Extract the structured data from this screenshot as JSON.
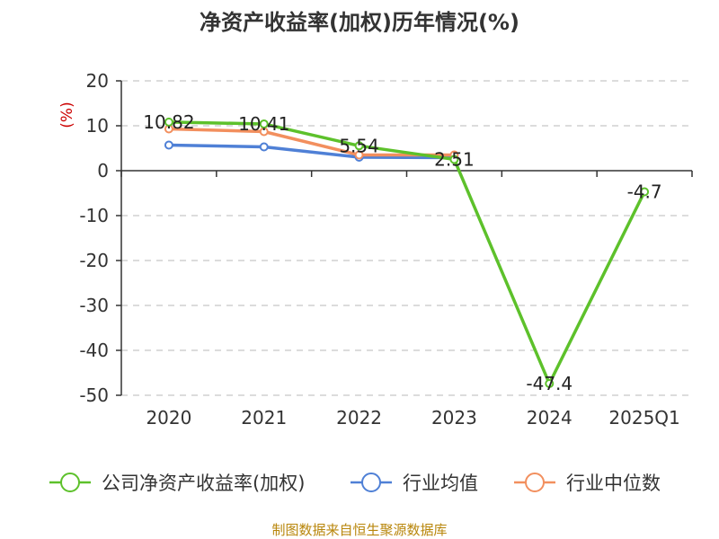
{
  "chart_data": {
    "type": "line",
    "title": "净资产收益率(加权)历年情况(%)",
    "ylabel": "(%)",
    "categories": [
      "2020",
      "2021",
      "2022",
      "2023",
      "2024",
      "2025Q1"
    ],
    "ylim": [
      -50,
      20
    ],
    "yticks": [
      20,
      10,
      0,
      -10,
      -20,
      -30,
      -40,
      -50
    ],
    "grid": true,
    "legend_position": "bottom",
    "series": [
      {
        "name": "公司净资产收益率(加权)",
        "color": "#5dc12b",
        "values": [
          10.82,
          10.41,
          5.54,
          2.51,
          -47.4,
          -4.7
        ],
        "labels": [
          "10.82",
          "10.41",
          "5.54",
          "2.51",
          "-47.4",
          "-4.7"
        ]
      },
      {
        "name": "行业均值",
        "color": "#4f80d6",
        "values": [
          5.7,
          5.3,
          3.0,
          2.9,
          null,
          null
        ]
      },
      {
        "name": "行业中位数",
        "color": "#f28f5e",
        "values": [
          9.3,
          8.7,
          3.5,
          3.5,
          null,
          null
        ]
      }
    ]
  },
  "source_text": "制图数据来自恒生聚源数据库"
}
